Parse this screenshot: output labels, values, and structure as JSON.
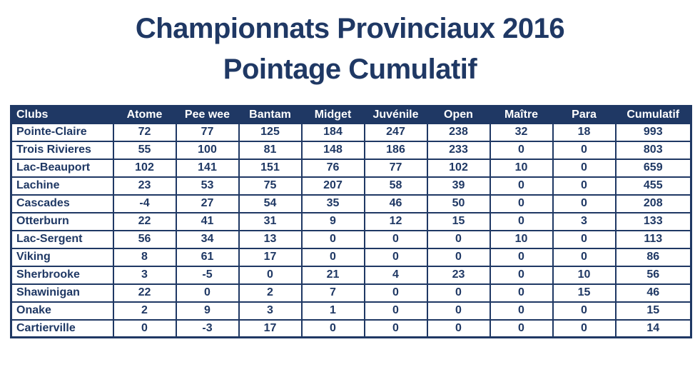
{
  "title": {
    "line1": "Championnats Provinciaux 2016",
    "line2": "Pointage Cumulatif"
  },
  "colors": {
    "navy": "#1F3864",
    "header_text": "#FFFFFF",
    "page_background": "#FFFFFF"
  },
  "chart_data": {
    "type": "table",
    "title": "Championnats Provinciaux 2016 - Pointage Cumulatif",
    "columns": [
      "Clubs",
      "Atome",
      "Pee wee",
      "Bantam",
      "Midget",
      "Juvénile",
      "Open",
      "Maître",
      "Para",
      "Cumulatif"
    ],
    "rows": [
      [
        "Pointe-Claire",
        72,
        77,
        125,
        184,
        247,
        238,
        32,
        18,
        993
      ],
      [
        "Trois Rivieres",
        55,
        100,
        81,
        148,
        186,
        233,
        0,
        0,
        803
      ],
      [
        "Lac-Beauport",
        102,
        141,
        151,
        76,
        77,
        102,
        10,
        0,
        659
      ],
      [
        "Lachine",
        23,
        53,
        75,
        207,
        58,
        39,
        0,
        0,
        455
      ],
      [
        "Cascades",
        -4,
        27,
        54,
        35,
        46,
        50,
        0,
        0,
        208
      ],
      [
        "Otterburn",
        22,
        41,
        31,
        9,
        12,
        15,
        0,
        3,
        133
      ],
      [
        "Lac-Sergent",
        56,
        34,
        13,
        0,
        0,
        0,
        10,
        0,
        113
      ],
      [
        "Viking",
        8,
        61,
        17,
        0,
        0,
        0,
        0,
        0,
        86
      ],
      [
        "Sherbrooke",
        3,
        -5,
        0,
        21,
        4,
        23,
        0,
        10,
        56
      ],
      [
        "Shawinigan",
        22,
        0,
        2,
        7,
        0,
        0,
        0,
        15,
        46
      ],
      [
        "Onake",
        2,
        9,
        3,
        1,
        0,
        0,
        0,
        0,
        15
      ],
      [
        "Cartierville",
        0,
        -3,
        17,
        0,
        0,
        0,
        0,
        0,
        14
      ]
    ]
  }
}
